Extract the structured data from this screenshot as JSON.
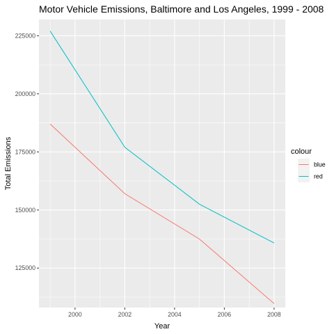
{
  "chart_data": {
    "type": "line",
    "title": "Motor Vehicle Emissions, Baltimore and Los Angeles, 1999 - 2008",
    "xlabel": "Year",
    "ylabel": "Total Emissions",
    "x": [
      1999,
      2002,
      2005,
      2008
    ],
    "xlim": [
      1998.55,
      2008.45
    ],
    "ylim": [
      108000,
      232000
    ],
    "x_ticks": [
      2000,
      2002,
      2004,
      2006,
      2008
    ],
    "x_tick_labels": [
      "2000",
      "2002",
      "2004",
      "2006",
      "2008"
    ],
    "y_ticks": [
      125000,
      150000,
      175000,
      200000,
      225000
    ],
    "y_tick_labels": [
      "125000",
      "150000",
      "175000",
      "200000",
      "225000"
    ],
    "grid": true,
    "legend_position": "right",
    "legend_title": "colour",
    "series": [
      {
        "name": "blue",
        "color": "#F8766D",
        "values": [
          187000,
          157000,
          137500,
          109700
        ]
      },
      {
        "name": "red",
        "color": "#00BFC4",
        "values": [
          227000,
          177000,
          152500,
          135800
        ]
      }
    ]
  }
}
